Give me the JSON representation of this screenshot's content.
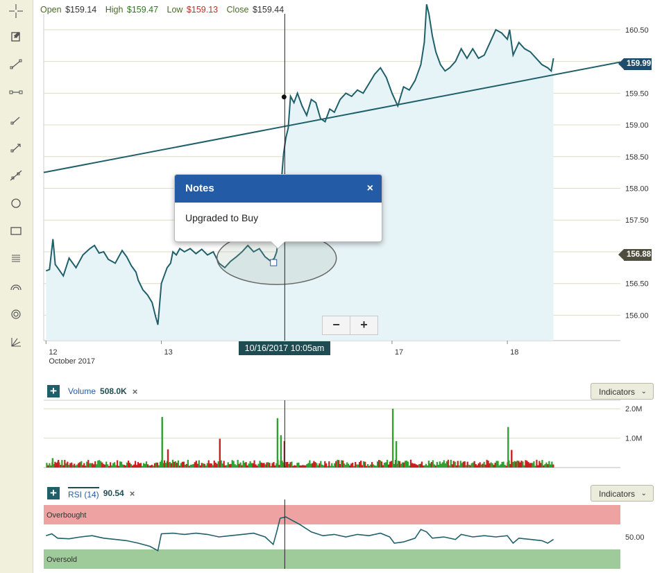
{
  "ohlc": {
    "open_label": "Open",
    "open": "$159.14",
    "high_label": "High",
    "high": "$159.47",
    "low_label": "Low",
    "low": "$159.13",
    "close_label": "Close",
    "close": "$159.44"
  },
  "toolbar": {
    "tools": [
      "crosshair-icon",
      "note-icon",
      "line-segment-icon",
      "horizontal-segment-icon",
      "arrow-line-icon",
      "ray-icon",
      "extended-line-icon",
      "circle-icon",
      "rectangle-icon",
      "fibonacci-icon",
      "arc-icon",
      "target-icon",
      "gann-fan-icon"
    ]
  },
  "notes_popup": {
    "title": "Notes",
    "close": "×",
    "body": "Upgraded to Buy"
  },
  "zoom": {
    "minus": "−",
    "plus": "+"
  },
  "crosshair_label": "10/16/2017 10:05am",
  "price_tags": {
    "last": "159.99",
    "other": "156.88"
  },
  "colors": {
    "line": "#1f5f6a",
    "area": "#e6f3f7",
    "trend": "#1f5f6a",
    "up": "#2ea02e",
    "down": "#c8201e",
    "overbought": "#eea2a2",
    "oversold": "#9fcb9a",
    "tag_blue": "#1f4c6a"
  },
  "volume_panel": {
    "plus": "+",
    "name": "Volume",
    "value": "508.0K",
    "remove": "×",
    "indicators_label": "Indicators",
    "chevron": "⌄"
  },
  "rsi_panel": {
    "plus": "+",
    "name": "RSI (14)",
    "value": "90.54",
    "remove": "×",
    "indicators_label": "Indicators",
    "chevron": "⌄",
    "overbought_label": "Overbought",
    "oversold_label": "Oversold"
  },
  "chart_data": [
    {
      "type": "area",
      "name": "price",
      "ylim": [
        155.6,
        160.75
      ],
      "yticks": [
        "160.50",
        "160.00",
        "159.50",
        "159.00",
        "158.50",
        "158.00",
        "157.50",
        "157.00",
        "156.50",
        "156.00"
      ],
      "ytick_values": [
        160.5,
        160.0,
        159.5,
        159.0,
        158.5,
        158.0,
        157.5,
        157.0,
        156.5,
        156.0
      ],
      "x_labels": [
        {
          "label": "12",
          "sub": "October 2017",
          "t": 0
        },
        {
          "label": "13",
          "sub": "",
          "t": 1
        },
        {
          "label": "17",
          "sub": "",
          "t": 3
        },
        {
          "label": "18",
          "sub": "",
          "t": 4
        }
      ],
      "xlim": [
        -0.02,
        4.98
      ],
      "series": [
        {
          "values": [
            [
              0,
              156.7
            ],
            [
              0.03,
              156.72
            ],
            [
              0.06,
              157.2
            ],
            [
              0.08,
              156.8
            ],
            [
              0.1,
              156.75
            ],
            [
              0.15,
              156.62
            ],
            [
              0.2,
              156.9
            ],
            [
              0.26,
              156.75
            ],
            [
              0.32,
              156.95
            ],
            [
              0.38,
              157.05
            ],
            [
              0.42,
              157.1
            ],
            [
              0.46,
              156.98
            ],
            [
              0.5,
              157.0
            ],
            [
              0.54,
              156.88
            ],
            [
              0.6,
              156.82
            ],
            [
              0.66,
              157.02
            ],
            [
              0.7,
              156.92
            ],
            [
              0.74,
              156.78
            ],
            [
              0.78,
              156.68
            ],
            [
              0.8,
              156.55
            ],
            [
              0.84,
              156.4
            ],
            [
              0.88,
              156.32
            ],
            [
              0.92,
              156.2
            ],
            [
              0.95,
              155.98
            ],
            [
              0.97,
              155.85
            ],
            [
              1.0,
              156.5
            ],
            [
              1.02,
              156.6
            ],
            [
              1.05,
              156.75
            ],
            [
              1.08,
              156.82
            ],
            [
              1.1,
              157.0
            ],
            [
              1.13,
              156.95
            ],
            [
              1.16,
              157.05
            ],
            [
              1.2,
              157.0
            ],
            [
              1.25,
              157.05
            ],
            [
              1.3,
              156.97
            ],
            [
              1.35,
              157.04
            ],
            [
              1.4,
              156.95
            ],
            [
              1.45,
              157.0
            ],
            [
              1.5,
              156.82
            ],
            [
              1.55,
              156.75
            ],
            [
              1.6,
              156.85
            ],
            [
              1.65,
              156.92
            ],
            [
              1.7,
              157.0
            ],
            [
              1.75,
              157.1
            ],
            [
              1.8,
              157.0
            ],
            [
              1.85,
              157.05
            ],
            [
              1.9,
              156.92
            ],
            [
              1.95,
              156.85
            ],
            [
              1.98,
              156.9
            ],
            [
              2.0,
              157.0
            ],
            [
              2.02,
              157.3
            ],
            [
              2.04,
              158.1
            ],
            [
              2.06,
              158.55
            ],
            [
              2.08,
              158.8
            ],
            [
              2.1,
              158.95
            ],
            [
              2.12,
              159.45
            ],
            [
              2.15,
              159.35
            ],
            [
              2.18,
              159.5
            ],
            [
              2.22,
              159.3
            ],
            [
              2.26,
              159.15
            ],
            [
              2.3,
              159.4
            ],
            [
              2.34,
              159.35
            ],
            [
              2.38,
              159.1
            ],
            [
              2.42,
              159.05
            ],
            [
              2.46,
              159.25
            ],
            [
              2.5,
              159.2
            ],
            [
              2.55,
              159.4
            ],
            [
              2.6,
              159.5
            ],
            [
              2.65,
              159.45
            ],
            [
              2.7,
              159.55
            ],
            [
              2.75,
              159.5
            ],
            [
              2.8,
              159.65
            ],
            [
              2.85,
              159.8
            ],
            [
              2.9,
              159.9
            ],
            [
              2.95,
              159.75
            ],
            [
              3.0,
              159.5
            ],
            [
              3.05,
              159.3
            ],
            [
              3.1,
              159.6
            ],
            [
              3.15,
              159.55
            ],
            [
              3.2,
              159.7
            ],
            [
              3.25,
              159.95
            ],
            [
              3.28,
              160.3
            ],
            [
              3.3,
              160.9
            ],
            [
              3.32,
              160.75
            ],
            [
              3.35,
              160.4
            ],
            [
              3.38,
              160.15
            ],
            [
              3.42,
              159.95
            ],
            [
              3.46,
              159.85
            ],
            [
              3.5,
              159.9
            ],
            [
              3.55,
              160.0
            ],
            [
              3.6,
              160.2
            ],
            [
              3.65,
              160.05
            ],
            [
              3.7,
              160.2
            ],
            [
              3.75,
              160.05
            ],
            [
              3.8,
              160.1
            ],
            [
              3.85,
              160.3
            ],
            [
              3.9,
              160.5
            ],
            [
              3.95,
              160.45
            ],
            [
              4.0,
              160.35
            ],
            [
              4.02,
              160.5
            ],
            [
              4.05,
              160.1
            ],
            [
              4.1,
              160.3
            ],
            [
              4.15,
              160.2
            ],
            [
              4.2,
              160.15
            ],
            [
              4.25,
              160.05
            ],
            [
              4.3,
              159.95
            ],
            [
              4.35,
              159.9
            ],
            [
              4.38,
              159.85
            ],
            [
              4.4,
              160.05
            ]
          ]
        }
      ],
      "trendline": [
        [
          -0.02,
          158.25
        ],
        [
          4.98,
          159.99
        ]
      ],
      "crosshair_t": 2.07,
      "marker_t": 2.1,
      "marker_value": 159.44,
      "annotation_ellipse_t": 2.0,
      "annotation_ellipse_value": 156.9
    },
    {
      "type": "bar",
      "name": "volume",
      "ylim": [
        0,
        2100000
      ],
      "yticks": [
        "2.0M",
        "1.0M"
      ],
      "ytick_values": [
        2000000,
        1000000
      ],
      "spikes": [
        [
          0.05,
          320000,
          "up"
        ],
        [
          0.1,
          260000,
          "down"
        ],
        [
          1.0,
          1720000,
          "up"
        ],
        [
          1.05,
          620000,
          "down"
        ],
        [
          1.5,
          980000,
          "down"
        ],
        [
          2.0,
          1680000,
          "up"
        ],
        [
          2.03,
          1100000,
          "up"
        ],
        [
          2.06,
          900000,
          "down"
        ],
        [
          3.0,
          2000000,
          "up"
        ],
        [
          3.03,
          900000,
          "up"
        ],
        [
          4.0,
          1380000,
          "up"
        ],
        [
          4.03,
          600000,
          "down"
        ]
      ],
      "baseline_avg": 180000
    },
    {
      "type": "line",
      "name": "rsi",
      "ylim": [
        0,
        100
      ],
      "yticks": [
        "50.00"
      ],
      "ytick_values": [
        50
      ],
      "bands": {
        "overbought": [
          70,
          100
        ],
        "oversold": [
          0,
          30
        ]
      },
      "values": [
        [
          0,
          52
        ],
        [
          0.05,
          55
        ],
        [
          0.1,
          48
        ],
        [
          0.2,
          47
        ],
        [
          0.3,
          50
        ],
        [
          0.4,
          52
        ],
        [
          0.5,
          48
        ],
        [
          0.6,
          46
        ],
        [
          0.7,
          44
        ],
        [
          0.8,
          40
        ],
        [
          0.9,
          35
        ],
        [
          0.97,
          28
        ],
        [
          1.0,
          55
        ],
        [
          1.1,
          56
        ],
        [
          1.2,
          54
        ],
        [
          1.3,
          56
        ],
        [
          1.4,
          54
        ],
        [
          1.5,
          50
        ],
        [
          1.6,
          52
        ],
        [
          1.7,
          54
        ],
        [
          1.8,
          56
        ],
        [
          1.9,
          50
        ],
        [
          1.97,
          38
        ],
        [
          2.0,
          58
        ],
        [
          2.03,
          80
        ],
        [
          2.08,
          82
        ],
        [
          2.12,
          78
        ],
        [
          2.2,
          70
        ],
        [
          2.3,
          58
        ],
        [
          2.4,
          52
        ],
        [
          2.5,
          54
        ],
        [
          2.6,
          50
        ],
        [
          2.7,
          54
        ],
        [
          2.8,
          52
        ],
        [
          2.9,
          56
        ],
        [
          2.98,
          50
        ],
        [
          3.02,
          40
        ],
        [
          3.1,
          42
        ],
        [
          3.2,
          48
        ],
        [
          3.25,
          62
        ],
        [
          3.3,
          58
        ],
        [
          3.35,
          48
        ],
        [
          3.45,
          50
        ],
        [
          3.55,
          46
        ],
        [
          3.6,
          54
        ],
        [
          3.7,
          50
        ],
        [
          3.8,
          52
        ],
        [
          3.9,
          50
        ],
        [
          4.0,
          52
        ],
        [
          4.05,
          40
        ],
        [
          4.1,
          48
        ],
        [
          4.2,
          46
        ],
        [
          4.3,
          44
        ],
        [
          4.35,
          40
        ],
        [
          4.4,
          46
        ]
      ]
    }
  ]
}
